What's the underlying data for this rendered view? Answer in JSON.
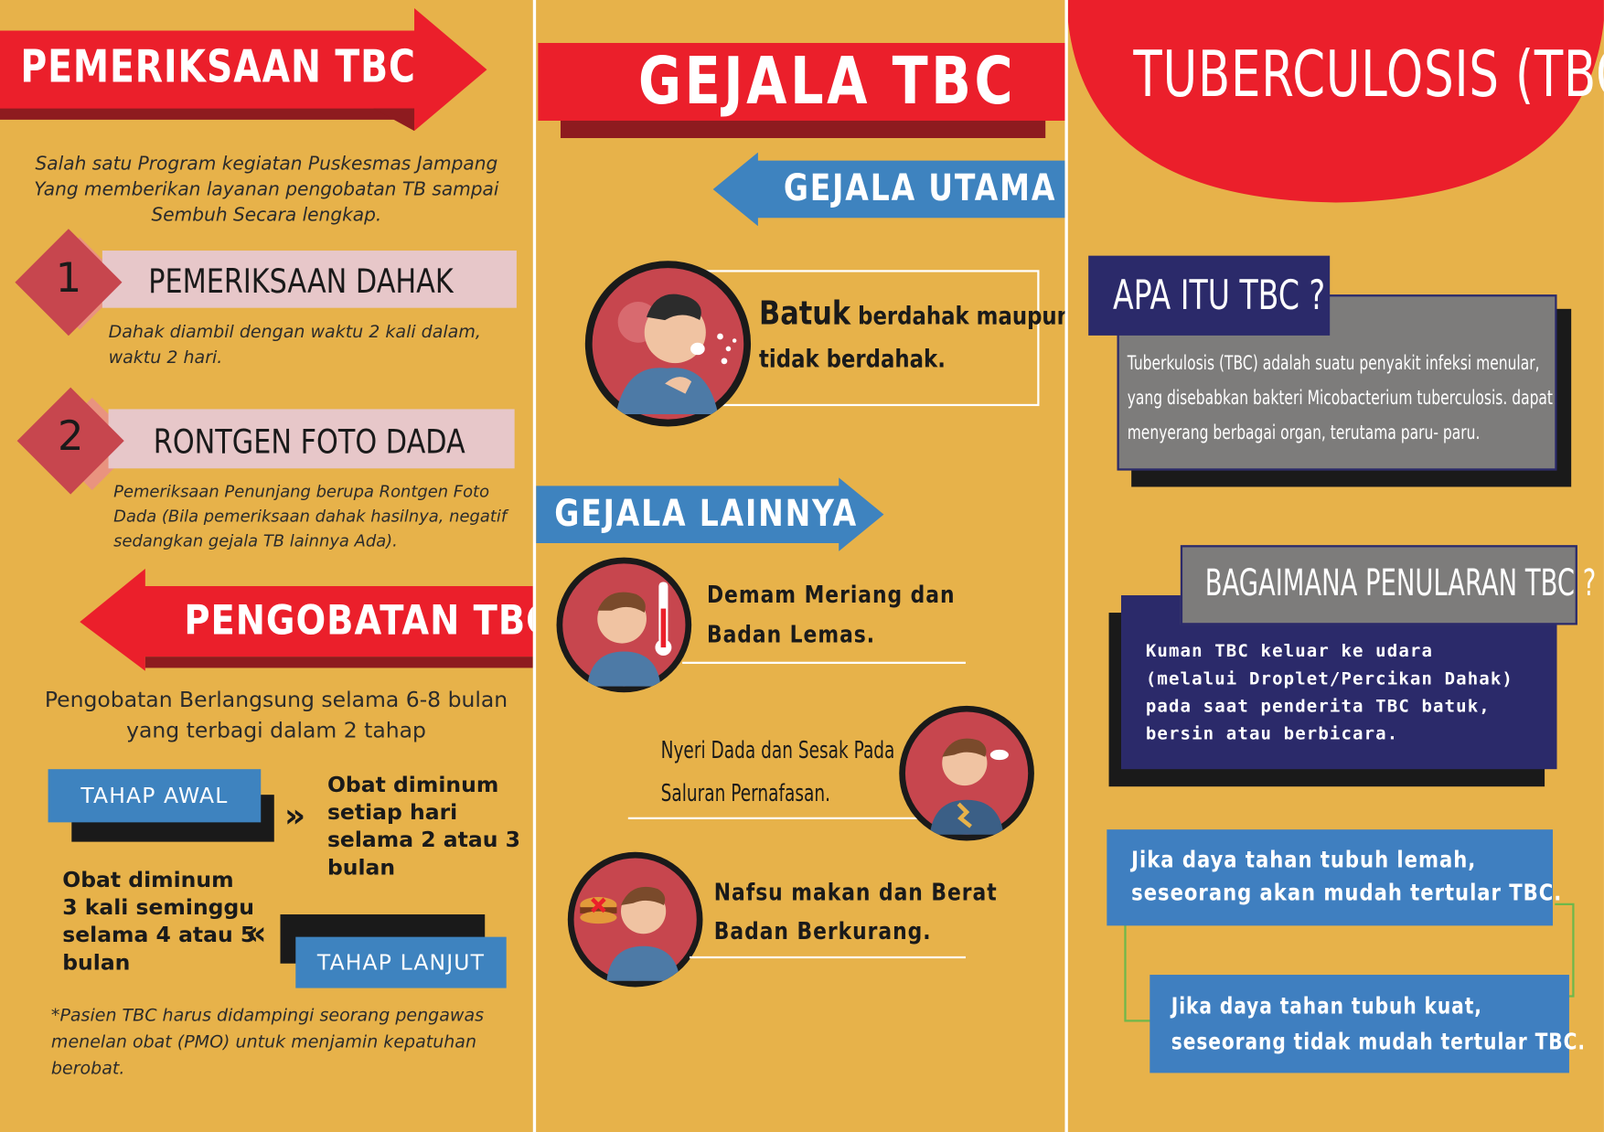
{
  "left_panel": {
    "title": "PEMERIKSAAN TBC",
    "intro_line1": "Salah satu Program kegiatan Puskesmas Jampang",
    "intro_line2": "Yang memberikan layanan pengobatan TB sampai",
    "intro_line3": "Sembuh Secara lengkap.",
    "step1": {
      "number": "1",
      "label": "PEMERIKSAAN DAHAK",
      "desc_line1": "Dahak diambil dengan waktu 2 kali dalam,",
      "desc_line2": "waktu 2 hari."
    },
    "step2": {
      "number": "2",
      "label": "RONTGEN FOTO DADA",
      "desc_line1": "Pemeriksaan Penunjang berupa Rontgen Foto",
      "desc_line2": "Dada (Bila pemeriksaan dahak hasilnya, negatif",
      "desc_line3": "sedangkan gejala TB lainnya Ada)."
    },
    "treatment_title": "PENGOBATAN TBC",
    "treatment_line1": "Pengobatan Berlangsung selama 6-8 bulan",
    "treatment_line2": "yang terbagi dalam 2 tahap",
    "phase_initial": {
      "label": "TAHAP AWAL",
      "arrow": "»",
      "line1": "Obat diminum",
      "line2": "setiap hari",
      "line3": "selama 2 atau 3",
      "line4": "bulan"
    },
    "phase_followup": {
      "label": "TAHAP LANJUT",
      "arrow": "«",
      "line1": "Obat diminum",
      "line2": "3 kali seminggu",
      "line3": "selama 4 atau 5",
      "line4": "bulan"
    },
    "note_line1": "*Pasien TBC harus didampingi seorang pengawas",
    "note_line2": "menelan obat (PMO) untuk menjamin kepatuhan",
    "note_line3": "berobat."
  },
  "middle_panel": {
    "title": "GEJALA TBC",
    "main_symptom_title": "GEJALA UTAMA",
    "main_symptom_bold": "Batuk",
    "main_symptom_rest": "berdahak maupun",
    "main_symptom_line2": "tidak berdahak.",
    "other_symptoms_title": "GEJALA LAINNYA",
    "symptom1_line1": "Demam Meriang dan",
    "symptom1_line2": "Badan Lemas.",
    "symptom2_line1": "Nyeri Dada dan Sesak Pada",
    "symptom2_line2": "Saluran Pernafasan.",
    "symptom3_line1": "Nafsu makan dan Berat",
    "symptom3_line2": "Badan Berkurang."
  },
  "right_panel": {
    "title": "TUBERCULOSIS (TBC)",
    "what_title": "APA ITU TBC ?",
    "what_line1": "Tuberkulosis (TBC) adalah suatu penyakit infeksi menular,",
    "what_line2": "yang disebabkan bakteri Micobacterium tuberculosis. dapat",
    "what_line3": "menyerang berbagai organ, terutama paru- paru.",
    "spread_title": "BAGAIMANA PENULARAN TBC ?",
    "spread_line1": "Kuman TBC keluar ke udara",
    "spread_line2": "(melalui Droplet/Percikan Dahak)",
    "spread_line3": "pada saat penderita TBC batuk,",
    "spread_line4": "bersin atau berbicara.",
    "weak_line1": "Jika daya tahan  tubuh lemah,",
    "weak_line2": "seseorang akan mudah tertular TBC.",
    "strong_line1": "Jika daya tahan tubuh kuat,",
    "strong_line2": "seseorang tidak mudah tertular TBC."
  },
  "colors": {
    "background": "#E7B24A",
    "red": "#EB1F2B",
    "dark_red": "#8E1B1F",
    "blue": "#3E83BF",
    "navy": "#2B2A6A",
    "grey": "#7D7C7B",
    "pink": "#E7C7C9"
  }
}
